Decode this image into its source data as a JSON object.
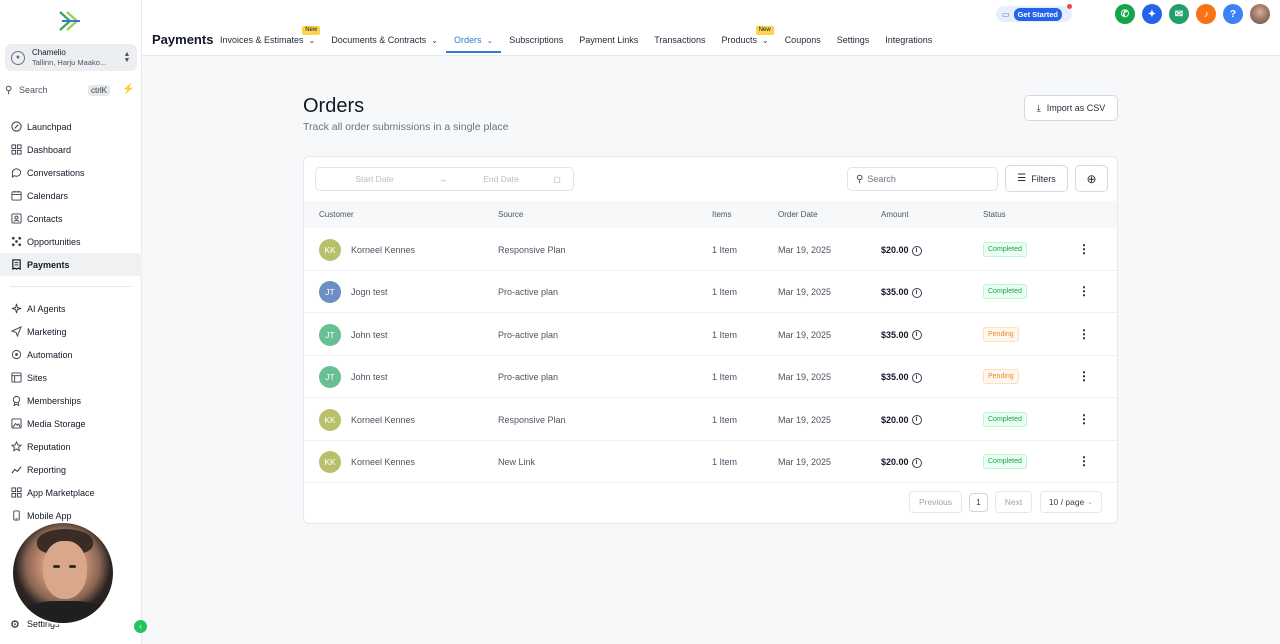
{
  "colors": {
    "accent": "#2f7bd5",
    "brand_green": "#22c55e",
    "completed": "#16a34a",
    "pending": "#ea8a2e"
  },
  "sidebar": {
    "account": {
      "name": "Chamelio",
      "location": "Tallinn, Harju Maako..."
    },
    "search": {
      "label": "Search",
      "shortcut": "ctrlK"
    },
    "items": [
      {
        "label": "Launchpad",
        "icon": "rocket-icon"
      },
      {
        "label": "Dashboard",
        "icon": "grid-icon"
      },
      {
        "label": "Conversations",
        "icon": "chat-icon"
      },
      {
        "label": "Calendars",
        "icon": "calendar-icon"
      },
      {
        "label": "Contacts",
        "icon": "contacts-icon"
      },
      {
        "label": "Opportunities",
        "icon": "opportunities-icon"
      },
      {
        "label": "Payments",
        "icon": "payments-icon"
      }
    ],
    "items2": [
      {
        "label": "AI Agents",
        "icon": "sparkles-icon"
      },
      {
        "label": "Marketing",
        "icon": "send-icon"
      },
      {
        "label": "Automation",
        "icon": "automation-icon"
      },
      {
        "label": "Sites",
        "icon": "sites-icon"
      },
      {
        "label": "Memberships",
        "icon": "membership-icon"
      },
      {
        "label": "Media Storage",
        "icon": "media-icon"
      },
      {
        "label": "Reputation",
        "icon": "star-icon"
      },
      {
        "label": "Reporting",
        "icon": "chart-icon"
      },
      {
        "label": "App Marketplace",
        "icon": "apps-icon"
      },
      {
        "label": "Mobile App",
        "icon": "mobile-icon"
      }
    ],
    "settings": "Settings"
  },
  "header": {
    "app_title": "Payments",
    "tabs": [
      {
        "label": "Invoices & Estimates",
        "new": "New",
        "chevron": true
      },
      {
        "label": "Documents & Contracts",
        "chevron": true
      },
      {
        "label": "Orders",
        "chevron": true,
        "active": true
      },
      {
        "label": "Subscriptions"
      },
      {
        "label": "Payment Links"
      },
      {
        "label": "Transactions"
      },
      {
        "label": "Products",
        "new": "New",
        "chevron": true
      },
      {
        "label": "Coupons"
      },
      {
        "label": "Settings"
      },
      {
        "label": "Integrations"
      }
    ],
    "get_started": "Get Started"
  },
  "main": {
    "title": "Orders",
    "subtitle": "Track all order submissions in a single place",
    "import_label": "Import as CSV",
    "toolbar": {
      "start_date_placeholder": "Start Date",
      "end_date_placeholder": "End Date",
      "search_placeholder": "Search",
      "filters_label": "Filters"
    },
    "columns": [
      "Customer",
      "Source",
      "Items",
      "Order Date",
      "Amount",
      "Status"
    ],
    "rows": [
      {
        "initials": "KK",
        "avatar_color": "#b9c06c",
        "customer": "Korneel Kennes",
        "source": "Responsive Plan",
        "items": "1 Item",
        "date": "Mar 19, 2025",
        "amount": "$20.00",
        "status": "Completed"
      },
      {
        "initials": "JT",
        "avatar_color": "#6b8fc2",
        "customer": "Jogn test",
        "source": "Pro-active plan",
        "items": "1 Item",
        "date": "Mar 19, 2025",
        "amount": "$35.00",
        "status": "Completed"
      },
      {
        "initials": "JT",
        "avatar_color": "#67bf92",
        "customer": "John test",
        "source": "Pro-active plan",
        "items": "1 Item",
        "date": "Mar 19, 2025",
        "amount": "$35.00",
        "status": "Pending"
      },
      {
        "initials": "JT",
        "avatar_color": "#67bf92",
        "customer": "John test",
        "source": "Pro-active plan",
        "items": "1 Item",
        "date": "Mar 19, 2025",
        "amount": "$35.00",
        "status": "Pending"
      },
      {
        "initials": "KK",
        "avatar_color": "#b9c06c",
        "customer": "Korneel Kennes",
        "source": "Responsive Plan",
        "items": "1 Item",
        "date": "Mar 19, 2025",
        "amount": "$20.00",
        "status": "Completed"
      },
      {
        "initials": "KK",
        "avatar_color": "#b9c06c",
        "customer": "Korneel Kennes",
        "source": "New Link",
        "items": "1 Item",
        "date": "Mar 19, 2025",
        "amount": "$20.00",
        "status": "Completed"
      }
    ],
    "pagination": {
      "previous": "Previous",
      "current": "1",
      "next": "Next",
      "page_size": "10 / page"
    }
  }
}
